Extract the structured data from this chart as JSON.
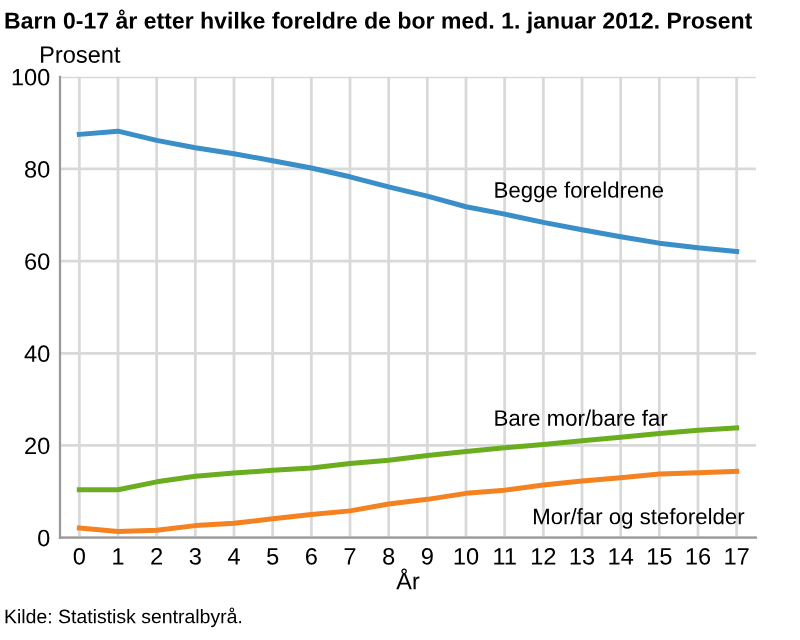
{
  "chart_data": {
    "type": "line",
    "title": "Barn 0-17 år etter hvilke foreldre de bor med. 1. januar 2012. Prosent",
    "ylabel": "Prosent",
    "xlabel": "År",
    "x": [
      0,
      1,
      2,
      3,
      4,
      5,
      6,
      7,
      8,
      9,
      10,
      11,
      12,
      13,
      14,
      15,
      16,
      17
    ],
    "series": [
      {
        "name": "Begge foreldrene",
        "color": "#3a8fc8",
        "values": [
          87.5,
          88.2,
          86.2,
          84.6,
          83.3,
          81.8,
          80.2,
          78.3,
          76.1,
          74.1,
          71.8,
          70.2,
          68.4,
          66.8,
          65.3,
          63.9,
          62.9,
          62.1
        ]
      },
      {
        "name": "Bare mor/bare far",
        "color": "#6aad1f",
        "values": [
          10.4,
          10.4,
          12.1,
          13.3,
          14.0,
          14.6,
          15.1,
          16.1,
          16.8,
          17.8,
          18.7,
          19.5,
          20.2,
          21.0,
          21.8,
          22.6,
          23.3,
          23.8
        ]
      },
      {
        "name": "Mor/far og steforelder",
        "color": "#f58220",
        "values": [
          2.1,
          1.3,
          1.6,
          2.6,
          3.1,
          4.1,
          5.0,
          5.8,
          7.3,
          8.3,
          9.6,
          10.3,
          11.4,
          12.3,
          13.0,
          13.8,
          14.1,
          14.4
        ]
      }
    ],
    "xlim": [
      -0.5,
      17.5
    ],
    "xticks": [
      0,
      1,
      2,
      3,
      4,
      5,
      6,
      7,
      8,
      9,
      10,
      11,
      12,
      13,
      14,
      15,
      16,
      17
    ],
    "ylim": [
      0,
      100
    ],
    "yticks": [
      0,
      20,
      40,
      60,
      80,
      100
    ],
    "grid": true,
    "marker": "none",
    "line_style": "solid",
    "legend": false,
    "annotations": [
      "Kilde: Statistisk sentralbyrå."
    ]
  }
}
